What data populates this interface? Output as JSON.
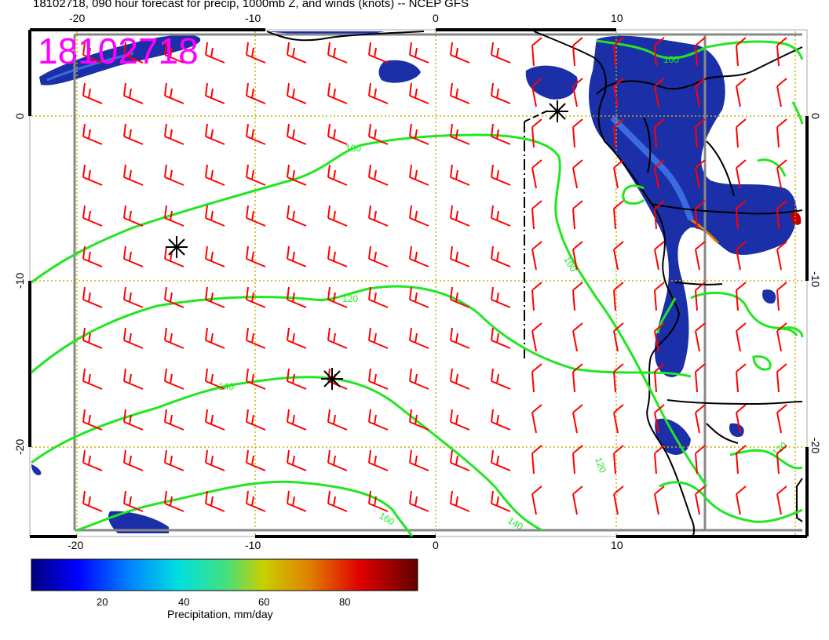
{
  "title": "18102718, 090 hour forecast for precip, 1000mb Z, and winds (knots) -- NCEP GFS",
  "stamp": "18102718",
  "axes": {
    "lon_top_labels": [
      "-20",
      "-10",
      "0",
      "10"
    ],
    "lon_bottom_labels": [
      "-20",
      "-10",
      "0",
      "10"
    ],
    "lat_left_labels": [
      "0",
      "-10",
      "-20"
    ],
    "lat_right_labels": [
      "0",
      "-10",
      "-20"
    ],
    "lon_values": [
      -20,
      -10,
      0,
      10
    ],
    "lat_values": [
      0,
      -10,
      -20
    ]
  },
  "contours": {
    "color": "#22e622",
    "labels": [
      "100",
      "120",
      "140",
      "160",
      "100",
      "100",
      "120",
      "120",
      "140"
    ]
  },
  "wind_barbs": {
    "color": "#ff0000"
  },
  "markers": {
    "symbol": "asterisk",
    "color": "#000000",
    "count": 3
  },
  "colorbar": {
    "label": "Precipitation, mm/day",
    "ticks": [
      "20",
      "40",
      "60",
      "80"
    ],
    "tick_values": [
      20,
      40,
      60,
      80
    ],
    "min": 0,
    "max": 100,
    "colors": [
      "#00007f",
      "#0000ff",
      "#0080ff",
      "#00e0e0",
      "#40e080",
      "#a0d020",
      "#e0d000",
      "#e08000",
      "#e00000",
      "#800000"
    ]
  }
}
